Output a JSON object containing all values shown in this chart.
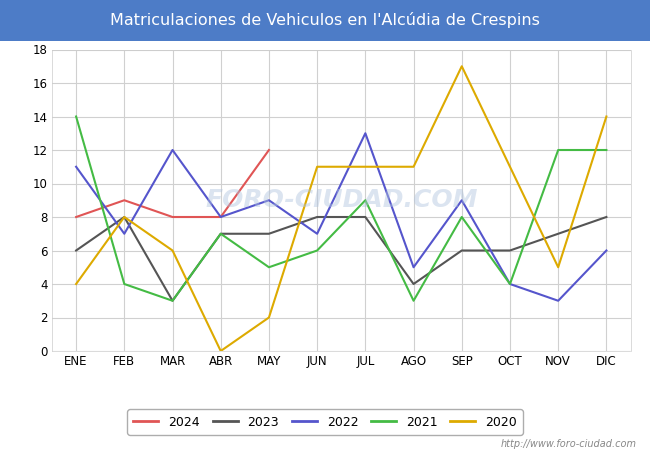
{
  "title": "Matriculaciones de Vehiculos en l'Alcúdia de Crespins",
  "months": [
    "ENE",
    "FEB",
    "MAR",
    "ABR",
    "MAY",
    "JUN",
    "JUL",
    "AGO",
    "SEP",
    "OCT",
    "NOV",
    "DIC"
  ],
  "series_order": [
    "2024",
    "2023",
    "2022",
    "2021",
    "2020"
  ],
  "series": {
    "2024": {
      "color": "#e05555",
      "data": [
        8,
        9,
        8,
        8,
        12,
        null,
        null,
        null,
        null,
        null,
        null,
        null
      ]
    },
    "2023": {
      "color": "#555555",
      "data": [
        6,
        8,
        3,
        7,
        7,
        8,
        8,
        4,
        6,
        6,
        7,
        8
      ]
    },
    "2022": {
      "color": "#5555cc",
      "data": [
        11,
        7,
        12,
        8,
        9,
        7,
        13,
        5,
        9,
        4,
        3,
        6
      ]
    },
    "2021": {
      "color": "#44bb44",
      "data": [
        14,
        4,
        3,
        7,
        5,
        6,
        9,
        3,
        8,
        4,
        12,
        12
      ]
    },
    "2020": {
      "color": "#ddaa00",
      "data": [
        4,
        8,
        6,
        0,
        2,
        11,
        11,
        11,
        17,
        11,
        5,
        14
      ]
    }
  },
  "ylim": [
    0,
    18
  ],
  "yticks": [
    0,
    2,
    4,
    6,
    8,
    10,
    12,
    14,
    16,
    18
  ],
  "plot_bg_color": "#ffffff",
  "figure_bg_color": "#ffffff",
  "title_bg_color": "#4d7cc7",
  "title_font_color": "#ffffff",
  "grid_color": "#d0d0d0",
  "outer_bg_color": "#e0e0e0",
  "watermark_text": "http://www.foro-ciudad.com",
  "watermark_overlay": "FORO-CIUDAD.COM",
  "linewidth": 1.5
}
